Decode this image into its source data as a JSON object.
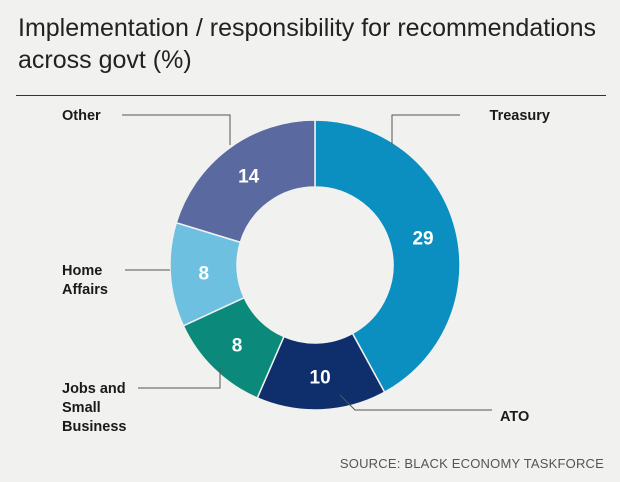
{
  "header": {
    "title": "Implementation / responsibility for recommendations across govt (%)"
  },
  "footer": {
    "source": "SOURCE: BLACK ECONOMY TASKFORCE"
  },
  "chart_data": {
    "type": "pie",
    "variant": "donut",
    "title": "Implementation / responsibility for recommendations across govt (%)",
    "unit": "%",
    "start": "top, clockwise",
    "labels": [
      "Treasury",
      "ATO",
      "Jobs and Small Business",
      "Home Affairs",
      "Other"
    ],
    "label_lines": [
      [
        "Treasury"
      ],
      [
        "ATO"
      ],
      [
        "Jobs and",
        "Small",
        "Business"
      ],
      [
        "Home",
        "Affairs"
      ],
      [
        "Other"
      ]
    ],
    "values": [
      29,
      10,
      8,
      8,
      14
    ],
    "colors": [
      "#0a8fc0",
      "#0e2f6b",
      "#0b8a7c",
      "#6ec0e0",
      "#5a6aa1"
    ],
    "legend": "callout labels"
  }
}
